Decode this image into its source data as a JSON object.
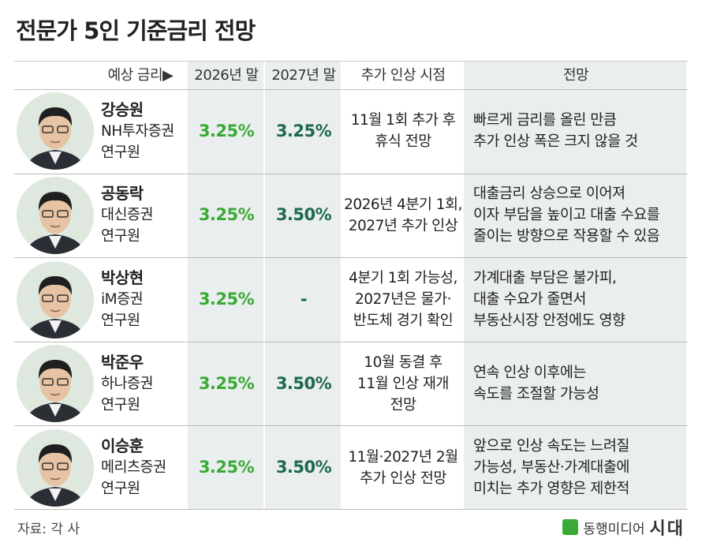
{
  "header": {
    "title": "전문가 5인 기준금리 전망"
  },
  "table": {
    "columns": [
      "예상 금리▶",
      "2026년 말",
      "2027년 말",
      "추가 인상 시점",
      "전망"
    ],
    "rows": [
      {
        "name": "강승원",
        "affiliation": "NH투자증권",
        "position": "연구원",
        "y2026": "3.25%",
        "y2027": "3.25%",
        "timing": [
          "11월 1회 추가 후",
          "휴식 전망"
        ],
        "outlook": [
          "빠르게 금리를 올린 만큼",
          "추가 인상 폭은 크지 않을 것"
        ]
      },
      {
        "name": "공동락",
        "affiliation": "대신증권",
        "position": "연구원",
        "y2026": "3.25%",
        "y2027": "3.50%",
        "timing": [
          "2026년 4분기 1회,",
          "2027년 추가 인상"
        ],
        "outlook": [
          "대출금리 상승으로 이어져",
          "이자 부담을 높이고 대출 수요를",
          "줄이는 방향으로 작용할 수 있음"
        ]
      },
      {
        "name": "박상현",
        "affiliation": "iM증권",
        "position": "연구원",
        "y2026": "3.25%",
        "y2027": "-",
        "timing": [
          "4분기 1회 가능성,",
          "2027년은 물가·",
          "반도체 경기 확인"
        ],
        "outlook": [
          "가계대출 부담은 불가피,",
          "대출 수요가 줄면서",
          "부동산시장 안정에도 영향"
        ]
      },
      {
        "name": "박준우",
        "affiliation": "하나증권",
        "position": "연구원",
        "y2026": "3.25%",
        "y2027": "3.50%",
        "timing": [
          "10월 동결 후",
          "11월 인상 재개",
          "전망"
        ],
        "outlook": [
          "연속 인상 이후에는",
          "속도를 조절할 가능성"
        ]
      },
      {
        "name": "이승훈",
        "affiliation": "메리츠증권",
        "position": "연구원",
        "y2026": "3.25%",
        "y2027": "3.50%",
        "timing": [
          "11월·2027년 2월",
          "추가 인상 전망"
        ],
        "outlook": [
          "앞으로 인상 속도는 느려질",
          "가능성, 부동산·가계대출에",
          "미치는 추가 영향은 제한적"
        ]
      }
    ]
  },
  "footer": {
    "source": "자료: 각 사",
    "logo_text": "동행미디어",
    "logo_brand": "시대"
  }
}
